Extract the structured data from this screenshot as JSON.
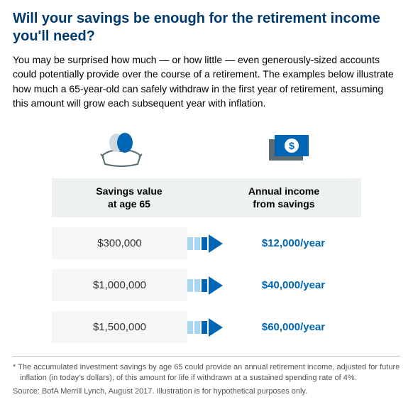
{
  "title_color": "#003a6f",
  "income_color": "#0066b3",
  "arrow_light": "#a9d6f0",
  "arrow_dark": "#0066b3",
  "title": "Will your savings be enough for the retirement income you'll need?",
  "description": "You may be surprised how much — or how little — even generously-sized accounts could potentially provide over the course of a retirement. The examples below illustrate how much a 65-year-old can safely withdraw in the first year of retirement, assuming this amount will grow each subsequent year with inflation.",
  "header_left_line1": "Savings value",
  "header_left_line2": "at age 65",
  "header_right_line1": "Annual income",
  "header_right_line2": "from savings",
  "rows": [
    {
      "savings": "$300,000",
      "income": "$12,000/year"
    },
    {
      "savings": "$1,000,000",
      "income": "$40,000/year"
    },
    {
      "savings": "$1,500,000",
      "income": "$60,000/year"
    }
  ],
  "footnote": "* The accumulated investment savings by age 65 could provide an annual retirement income, adjusted for future inflation (in today's dollars), of this amount for life if withdrawn at a sustained spending rate of 4%.",
  "source": "Source: BofA Merrill Lynch, August 2017. Illustration is for hypothetical purposes only."
}
